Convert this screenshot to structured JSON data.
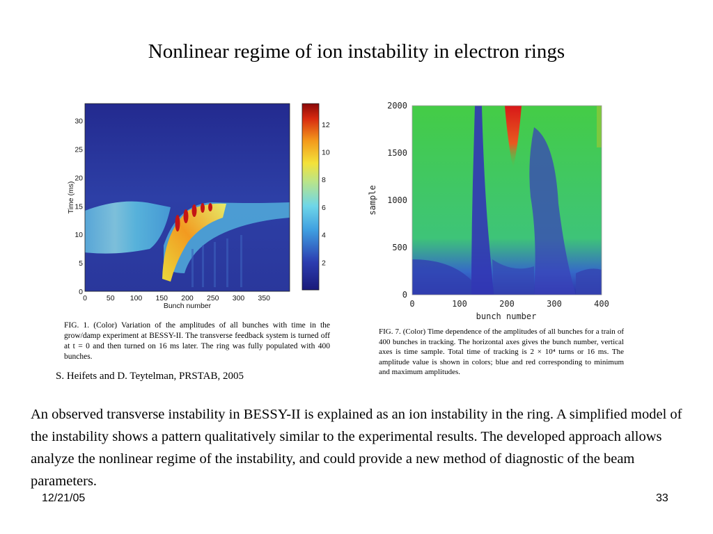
{
  "slide": {
    "title": "Nonlinear regime of ion instability in electron rings",
    "citation": "S. Heifets and D. Teytelman, PRSTAB, 2005",
    "body": "An observed transverse instability in BESSY-II is explained as an ion instability in the ring. A simplified model of the instability shows a pattern qualitatively similar to the experimental results. The developed approach  allows  analyze the nonlinear regime of the instability, and could provide a new method of diagnostic of the beam parameters.",
    "date": "12/21/05",
    "page": "33"
  },
  "figures": {
    "fig1_caption": "FIG. 1. (Color) Variation of the amplitudes of all bunches with time in the grow/damp experiment at BESSY-II. The transverse feedback system is turned off at t = 0 and then turned on 16 ms later. The ring was fully populated with 400 bunches.",
    "fig2_caption": "FIG. 7. (Color) Time dependence of the amplitudes of all bunches for a train of 400 bunches in tracking. The horizontal axes gives the bunch number, vertical axes is time sample. Total time of tracking is 2 × 10⁴ turns or 16 ms. The amplitude value is shown in colors; blue and red corresponding to minimum and maximum amplitudes."
  },
  "chart_data": [
    {
      "type": "heatmap",
      "title": "",
      "xlabel": "Bunch number",
      "ylabel": "Time (ms)",
      "xlim": [
        0,
        400
      ],
      "ylim": [
        0,
        33
      ],
      "xticks": [
        "0",
        "50",
        "100",
        "150",
        "200",
        "250",
        "300",
        "350"
      ],
      "yticks": [
        "0",
        "5",
        "10",
        "15",
        "20",
        "25",
        "30"
      ],
      "colorbar": {
        "range": [
          0,
          13.5
        ],
        "ticks": [
          "2",
          "4",
          "6",
          "8",
          "10",
          "12"
        ]
      },
      "colors": {
        "low": "#20228a",
        "mid": "#5ec8e0",
        "high": "#c81010"
      }
    },
    {
      "type": "heatmap",
      "title": "",
      "xlabel": "bunch number",
      "ylabel": "sample",
      "xlim": [
        0,
        400
      ],
      "ylim": [
        0,
        2000
      ],
      "xticks": [
        "0",
        "100",
        "200",
        "300",
        "400"
      ],
      "yticks": [
        "0",
        "500",
        "1000",
        "1500",
        "2000"
      ],
      "colors": {
        "low": "#2a2aa0",
        "mid": "#3cc850",
        "high": "#d01818"
      }
    }
  ]
}
